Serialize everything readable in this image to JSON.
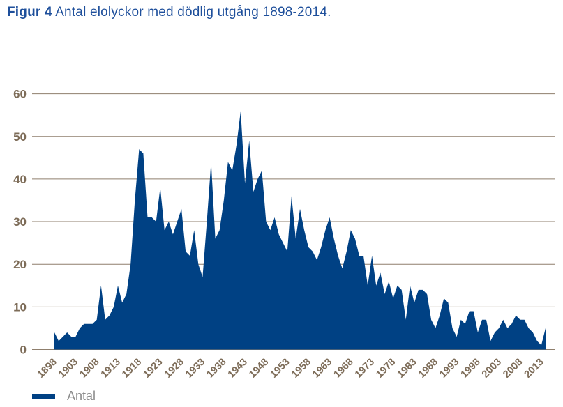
{
  "title": {
    "prefix": "Figur 4",
    "text": "Antal elolyckor med dödlig utgång 1898-2014."
  },
  "legend": {
    "label": "Antal"
  },
  "colors": {
    "series_fill": "#004184",
    "title_text": "#1e4f9b",
    "axis_label": "#7d6c58",
    "gridline": "#8f7f6d",
    "legend_text": "#8c8c8c",
    "background": "#ffffff"
  },
  "chart_data": {
    "type": "area",
    "title": "Antal elolyckor med dödlig utgång 1898-2014",
    "xlabel": "",
    "ylabel": "",
    "ylim": [
      0,
      60
    ],
    "yticks": [
      0,
      10,
      20,
      30,
      40,
      50,
      60
    ],
    "grid": "horizontal",
    "legend_position": "bottom-left",
    "series_name": "Antal",
    "xtick_labels": [
      "1898",
      "1903",
      "1908",
      "1913",
      "1918",
      "1923",
      "1928",
      "1933",
      "1938",
      "1943",
      "1948",
      "1953",
      "1958",
      "1963",
      "1968",
      "1973",
      "1978",
      "1983",
      "1988",
      "1993",
      "1998",
      "2003",
      "2008",
      "2013"
    ],
    "years": [
      1898,
      1899,
      1900,
      1901,
      1902,
      1903,
      1904,
      1905,
      1906,
      1907,
      1908,
      1909,
      1910,
      1911,
      1912,
      1913,
      1914,
      1915,
      1916,
      1917,
      1918,
      1919,
      1920,
      1921,
      1922,
      1923,
      1924,
      1925,
      1926,
      1927,
      1928,
      1929,
      1930,
      1931,
      1932,
      1933,
      1934,
      1935,
      1936,
      1937,
      1938,
      1939,
      1940,
      1941,
      1942,
      1943,
      1944,
      1945,
      1946,
      1947,
      1948,
      1949,
      1950,
      1951,
      1952,
      1953,
      1954,
      1955,
      1956,
      1957,
      1958,
      1959,
      1960,
      1961,
      1962,
      1963,
      1964,
      1965,
      1966,
      1967,
      1968,
      1969,
      1970,
      1971,
      1972,
      1973,
      1974,
      1975,
      1976,
      1977,
      1978,
      1979,
      1980,
      1981,
      1982,
      1983,
      1984,
      1985,
      1986,
      1987,
      1988,
      1989,
      1990,
      1991,
      1992,
      1993,
      1994,
      1995,
      1996,
      1997,
      1998,
      1999,
      2000,
      2001,
      2002,
      2003,
      2004,
      2005,
      2006,
      2007,
      2008,
      2009,
      2010,
      2011,
      2012,
      2013,
      2014
    ],
    "values": [
      4,
      2,
      3,
      4,
      3,
      3,
      5,
      6,
      6,
      6,
      7,
      15,
      7,
      8,
      10,
      15,
      11,
      13,
      20,
      35,
      47,
      46,
      31,
      31,
      30,
      38,
      28,
      30,
      27,
      30,
      33,
      23,
      22,
      28,
      20,
      17,
      30,
      44,
      26,
      28,
      35,
      44,
      42,
      48,
      56,
      39,
      49,
      37,
      40,
      42,
      30,
      28,
      31,
      27,
      25,
      23,
      36,
      26,
      33,
      28,
      24,
      23,
      21,
      24,
      28,
      31,
      26,
      22,
      19,
      23,
      28,
      26,
      22,
      22,
      15,
      22,
      15,
      18,
      13,
      16,
      12,
      15,
      14,
      7,
      15,
      11,
      14,
      14,
      13,
      7,
      5,
      8,
      12,
      11,
      5,
      3,
      7,
      6,
      9,
      9,
      4,
      7,
      7,
      2,
      4,
      5,
      7,
      5,
      6,
      8,
      7,
      7,
      5,
      4,
      2,
      1,
      5
    ]
  }
}
